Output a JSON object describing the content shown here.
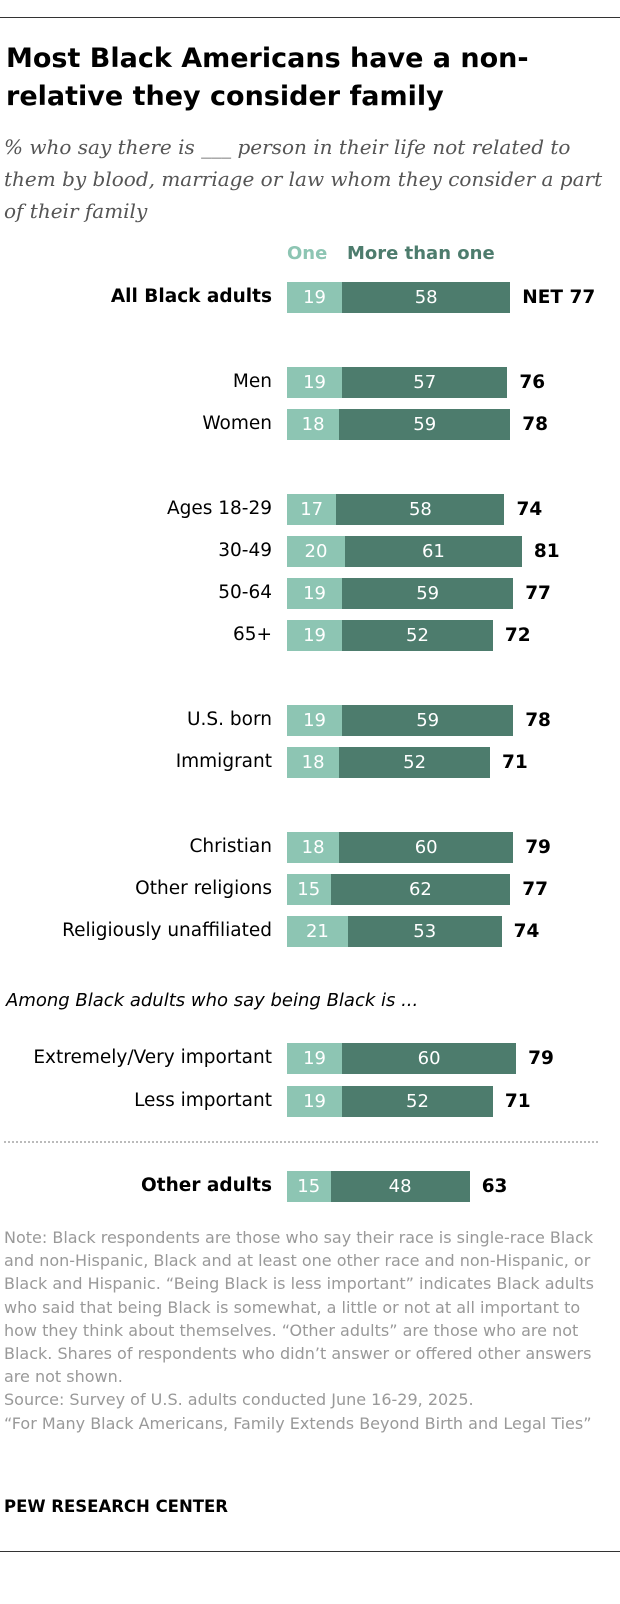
{
  "title": "Most Black Americans have a non-relative they consider family",
  "subtitle": "% who say there is ___ person in their life not related to them by blood, marriage or law whom they consider a part of their family",
  "legend": {
    "one": "One",
    "more": "More than one"
  },
  "colors": {
    "one": "#8dc5b3",
    "more": "#4d7c6d"
  },
  "section_note": "Among Black adults who say being Black is ...",
  "chart_data": {
    "type": "bar",
    "stacked": true,
    "orientation": "horizontal",
    "series": [
      {
        "name": "One",
        "color": "#8dc5b3",
        "values": [
          19,
          19,
          18,
          17,
          20,
          19,
          19,
          19,
          18,
          18,
          15,
          21,
          19,
          19,
          15
        ]
      },
      {
        "name": "More than one",
        "color": "#4d7c6d",
        "values": [
          58,
          57,
          59,
          58,
          61,
          59,
          52,
          59,
          52,
          60,
          62,
          53,
          60,
          52,
          48
        ]
      }
    ],
    "rows": [
      {
        "label": "All Black adults",
        "one": 19,
        "more": 58,
        "net": "NET 77",
        "bold": true
      },
      {
        "label": "Men",
        "one": 19,
        "more": 57,
        "net": "76"
      },
      {
        "label": "Women",
        "one": 18,
        "more": 59,
        "net": "78"
      },
      {
        "label": "Ages 18-29",
        "one": 17,
        "more": 58,
        "net": "74"
      },
      {
        "label": "30-49",
        "one": 20,
        "more": 61,
        "net": "81"
      },
      {
        "label": "50-64",
        "one": 19,
        "more": 59,
        "net": "77"
      },
      {
        "label": "65+",
        "one": 19,
        "more": 52,
        "net": "72"
      },
      {
        "label": "U.S. born",
        "one": 19,
        "more": 59,
        "net": "78"
      },
      {
        "label": "Immigrant",
        "one": 18,
        "more": 52,
        "net": "71"
      },
      {
        "label": "Christian",
        "one": 18,
        "more": 60,
        "net": "79"
      },
      {
        "label": "Other religions",
        "one": 15,
        "more": 62,
        "net": "77"
      },
      {
        "label": "Religiously unaffiliated",
        "one": 21,
        "more": 53,
        "net": "74"
      },
      {
        "label": "Extremely/Very important",
        "one": 19,
        "more": 60,
        "net": "79"
      },
      {
        "label": "Less important",
        "one": 19,
        "more": 52,
        "net": "71"
      },
      {
        "label": "Other adults",
        "one": 15,
        "more": 48,
        "net": "63",
        "bold": true
      }
    ]
  },
  "notes": [
    "Note: Black respondents are those who say their race is single-race Black and non-Hispanic, Black and at least one other race and non-Hispanic, or Black and Hispanic. “Being Black is less important” indicates Black adults who said that being Black is somewhat, a little or not at all important to how they think about themselves. “Other adults” are those who are not Black. Shares of respondents who didn’t answer or offered other answers are not shown.",
    "Source: Survey of U.S. adults conducted June 16-29, 2025.",
    "“For Many Black Americans, Family Extends Beyond Birth and Legal Ties”"
  ],
  "org": "PEW RESEARCH CENTER"
}
